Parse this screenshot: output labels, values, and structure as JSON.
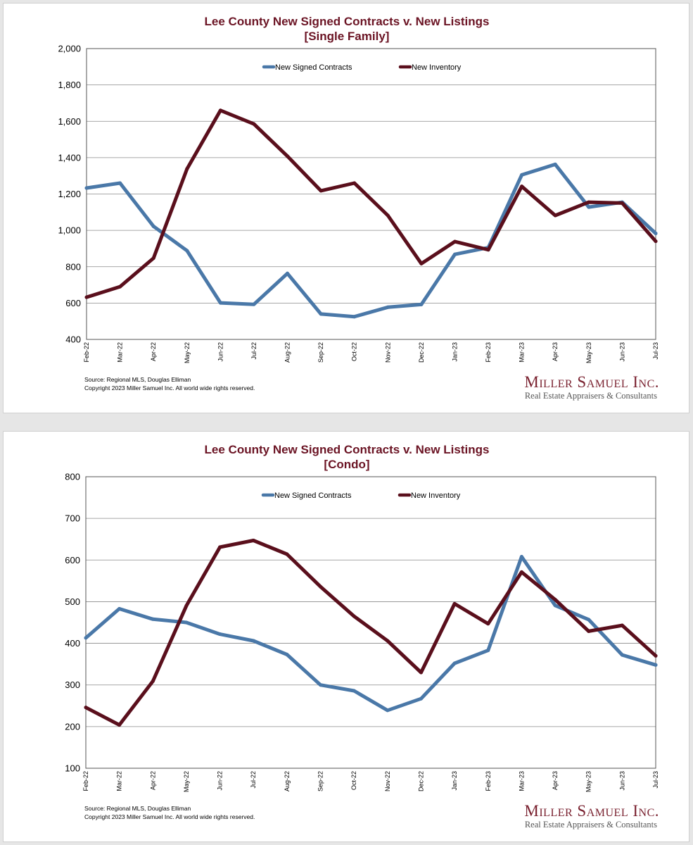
{
  "chart_data": [
    {
      "type": "line",
      "title": "Lee County New Signed Contracts v. New Listings",
      "subtitle": "[Single Family]",
      "categories": [
        "Feb-22",
        "Mar-22",
        "Apr-22",
        "May-22",
        "Jun-22",
        "Jul-22",
        "Aug-22",
        "Sep-22",
        "Oct-22",
        "Nov-22",
        "Dec-22",
        "Jan-23",
        "Feb-23",
        "Mar-23",
        "Apr-23",
        "May-23",
        "Jun-23",
        "Jul-23"
      ],
      "ylim": [
        400,
        2000
      ],
      "yticks": [
        400,
        600,
        800,
        1000,
        1200,
        1400,
        1600,
        1800,
        2000
      ],
      "ytick_labels": [
        "400",
        "600",
        "800",
        "1,000",
        "1,200",
        "1,400",
        "1,600",
        "1,800",
        "2,000"
      ],
      "grid": true,
      "legend_position": "top-center",
      "series": [
        {
          "name": "New Signed Contracts",
          "color": "#4a78a8",
          "values": [
            1233,
            1260,
            1022,
            888,
            601,
            593,
            763,
            540,
            525,
            577,
            592,
            868,
            905,
            1305,
            1363,
            1128,
            1155,
            983
          ]
        },
        {
          "name": "New Inventory",
          "color": "#5a0f1c",
          "values": [
            632,
            690,
            847,
            1338,
            1660,
            1585,
            1408,
            1218,
            1260,
            1082,
            817,
            938,
            893,
            1242,
            1082,
            1155,
            1150,
            940
          ]
        }
      ],
      "source": "Source: Regional MLS, Douglas Elliman",
      "copyright": "Copyright 2023 Miller Samuel Inc.  All world wide rights reserved.",
      "logo_name": "Miller Samuel Inc.",
      "logo_tagline": "Real Estate Appraisers & Consultants"
    },
    {
      "type": "line",
      "title": "Lee County New Signed Contracts v. New Listings",
      "subtitle": "[Condo]",
      "categories": [
        "Feb-22",
        "Mar-22",
        "Apr-22",
        "May-22",
        "Jun-22",
        "Jul-22",
        "Aug-22",
        "Sep-22",
        "Oct-22",
        "Nov-22",
        "Dec-22",
        "Jan-23",
        "Feb-23",
        "Mar-23",
        "Apr-23",
        "May-23",
        "Jun-23",
        "Jul-23"
      ],
      "ylim": [
        100,
        800
      ],
      "yticks": [
        100,
        200,
        300,
        400,
        500,
        600,
        700,
        800
      ],
      "ytick_labels": [
        "100",
        "200",
        "300",
        "400",
        "500",
        "600",
        "700",
        "800"
      ],
      "grid": true,
      "legend_position": "top-center",
      "series": [
        {
          "name": "New Signed Contracts",
          "color": "#4a78a8",
          "values": [
            413,
            483,
            458,
            450,
            422,
            406,
            373,
            300,
            286,
            239,
            267,
            352,
            383,
            608,
            491,
            457,
            372,
            348
          ]
        },
        {
          "name": "New Inventory",
          "color": "#5a0f1c",
          "values": [
            246,
            204,
            309,
            490,
            631,
            647,
            614,
            536,
            465,
            406,
            330,
            495,
            447,
            571,
            505,
            429,
            443,
            370
          ]
        }
      ],
      "source": "Source: Regional MLS, Douglas Elliman",
      "copyright": "Copyright 2023 Miller Samuel Inc.  All world wide rights reserved.",
      "logo_name": "Miller Samuel Inc.",
      "logo_tagline": "Real Estate Appraisers & Consultants"
    }
  ]
}
